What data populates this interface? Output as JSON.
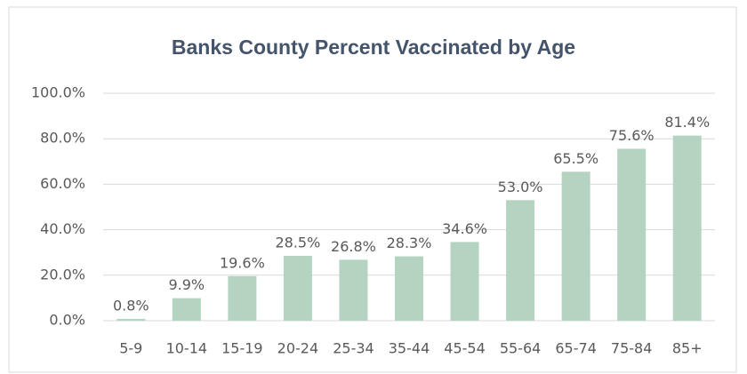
{
  "chart_data": {
    "type": "bar",
    "title": "Banks County  Percent Vaccinated by Age",
    "categories": [
      "5-9",
      "10-14",
      "15-19",
      "20-24",
      "25-34",
      "35-44",
      "45-54",
      "55-64",
      "65-74",
      "75-84",
      "85+"
    ],
    "values": [
      0.8,
      9.9,
      19.6,
      28.5,
      26.8,
      28.3,
      34.6,
      53.0,
      65.5,
      75.6,
      81.4
    ],
    "value_labels": [
      "0.8%",
      "9.9%",
      "19.6%",
      "28.5%",
      "26.8%",
      "28.3%",
      "34.6%",
      "53.0%",
      "65.5%",
      "75.6%",
      "81.4%"
    ],
    "color": "#b5d3c1",
    "ylim": [
      0,
      100
    ],
    "yticks": [
      {
        "value": 0,
        "label": "0.0%"
      },
      {
        "value": 20,
        "label": "20.0%"
      },
      {
        "value": 40,
        "label": "40.0%"
      },
      {
        "value": 60,
        "label": "60.0%"
      },
      {
        "value": 80,
        "label": "80.0%"
      },
      {
        "value": 100,
        "label": "100.0%"
      }
    ],
    "grid": true
  }
}
